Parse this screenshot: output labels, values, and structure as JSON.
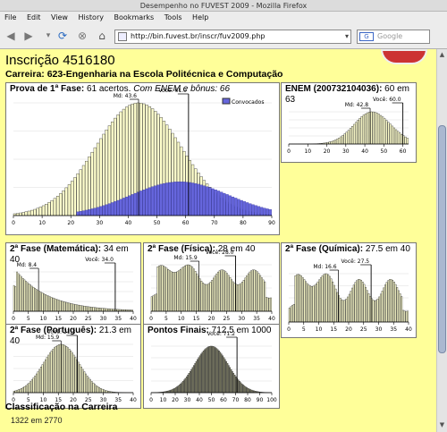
{
  "window": {
    "title": "Desempenho no FUVEST 2009 - Mozilla Firefox"
  },
  "menu": [
    "File",
    "Edit",
    "View",
    "History",
    "Bookmarks",
    "Tools",
    "Help"
  ],
  "nav": {
    "url": "http://bin.fuvest.br/inscr/fuv2009.php",
    "search_placeholder": "Google",
    "search_icon": "G"
  },
  "page": {
    "heading": "Inscrição 4516180",
    "career": "Carreira: 623-Engenharia na Escola Politécnica e Computação",
    "classification_label": "Classificação na Carreira",
    "classification_value": "1322 em 2770"
  },
  "panels": {
    "p1": {
      "title_bold": "Prova de 1ª Fase:",
      "title_rest": " 61 acertos. ",
      "title_italic": "Com ENEM e bônus: 66",
      "legend": "Convocados"
    },
    "enem": {
      "title_bold": "ENEM (200732104036):",
      "title_rest": " 60 em 63"
    },
    "mat": {
      "title_bold": "2ª Fase (Matemática):",
      "title_rest": " 34 em 40"
    },
    "fis": {
      "title_bold": "2ª Fase (Física):",
      "title_rest": " 28 em 40"
    },
    "qui": {
      "title_bold": "2ª Fase (Química):",
      "title_rest": " 27.5 em 40"
    },
    "por": {
      "title_bold": "2ª Fase (Português):",
      "title_rest": " 21.3 em 40"
    },
    "fin": {
      "title_bold": "Pontos Finais:",
      "title_rest": " 712.5 em 1000"
    }
  },
  "chart_data": [
    {
      "id": "p1",
      "type": "bar",
      "xlim": [
        0,
        90
      ],
      "xticks": [
        0,
        10,
        20,
        30,
        40,
        50,
        60,
        70,
        80,
        90
      ],
      "dist": {
        "kind": "normal",
        "mu": 43.6,
        "sigma": 15,
        "skew": 0
      },
      "overlay": {
        "name": "Convocados",
        "mu": 58,
        "sigma": 17,
        "scale": 0.3,
        "start": 22
      },
      "median": 43.6,
      "median_label": "Md: 43.6",
      "you": 61.0,
      "you_label": "Você: 61.0",
      "bar_color": "#ffffcc",
      "overlay_color": "#6666dd"
    },
    {
      "id": "enem",
      "type": "bar",
      "xlim": [
        0,
        63
      ],
      "xticks": [
        0,
        10,
        20,
        30,
        40,
        50,
        60
      ],
      "dist": {
        "kind": "normal",
        "mu": 46,
        "sigma": 10,
        "skew": -0.6
      },
      "median": 42.8,
      "median_label": "Md: 42.8",
      "you": 60.0,
      "you_label": "Você: 60.0",
      "bar_color": "#ffffcc"
    },
    {
      "id": "mat",
      "type": "bar",
      "xlim": [
        0,
        40
      ],
      "xticks": [
        0,
        5,
        10,
        15,
        20,
        25,
        30,
        35,
        40
      ],
      "dist": {
        "kind": "decay",
        "k": 0.09
      },
      "median": 8.4,
      "median_label": "Md: 8.4",
      "you": 34.0,
      "you_label": "Você: 34.0",
      "bar_color": "#ffffcc"
    },
    {
      "id": "fis",
      "type": "bar",
      "xlim": [
        0,
        40
      ],
      "xticks": [
        0,
        5,
        10,
        15,
        20,
        25,
        30,
        35,
        40
      ],
      "dist": {
        "kind": "flat",
        "level": 0.55,
        "wobble": 0.12
      },
      "median": 15.9,
      "median_label": "Md: 15.9",
      "you": 28.0,
      "you_label": "Você: 28.0",
      "bar_color": "#ffffcc"
    },
    {
      "id": "qui",
      "type": "bar",
      "xlim": [
        0,
        40
      ],
      "xticks": [
        0,
        5,
        10,
        15,
        20,
        25,
        30,
        35,
        40
      ],
      "dist": {
        "kind": "flat",
        "level": 0.45,
        "wobble": 0.15
      },
      "median": 16.6,
      "median_label": "Md: 16.6",
      "you": 27.5,
      "you_label": "Você: 27.5",
      "bar_color": "#ffffcc"
    },
    {
      "id": "por",
      "type": "bar",
      "xlim": [
        0,
        40
      ],
      "xticks": [
        0,
        5,
        10,
        15,
        20,
        25,
        30,
        35,
        40
      ],
      "dist": {
        "kind": "normal",
        "mu": 16,
        "sigma": 6,
        "skew": 0
      },
      "median": 15.9,
      "median_label": "Md: 15.9",
      "you": 21.3,
      "you_label": "Você: 21.3",
      "bar_color": "#ffffcc"
    },
    {
      "id": "fin",
      "type": "bar",
      "xlim": [
        0,
        100
      ],
      "xticks": [
        0,
        10,
        20,
        30,
        40,
        50,
        60,
        70,
        80,
        90,
        100
      ],
      "dist": {
        "kind": "normal",
        "mu": 50,
        "sigma": 14,
        "skew": 0
      },
      "median": null,
      "you": 71.2,
      "you_label": "Você: 71.2",
      "bar_color": "#88886a"
    }
  ]
}
